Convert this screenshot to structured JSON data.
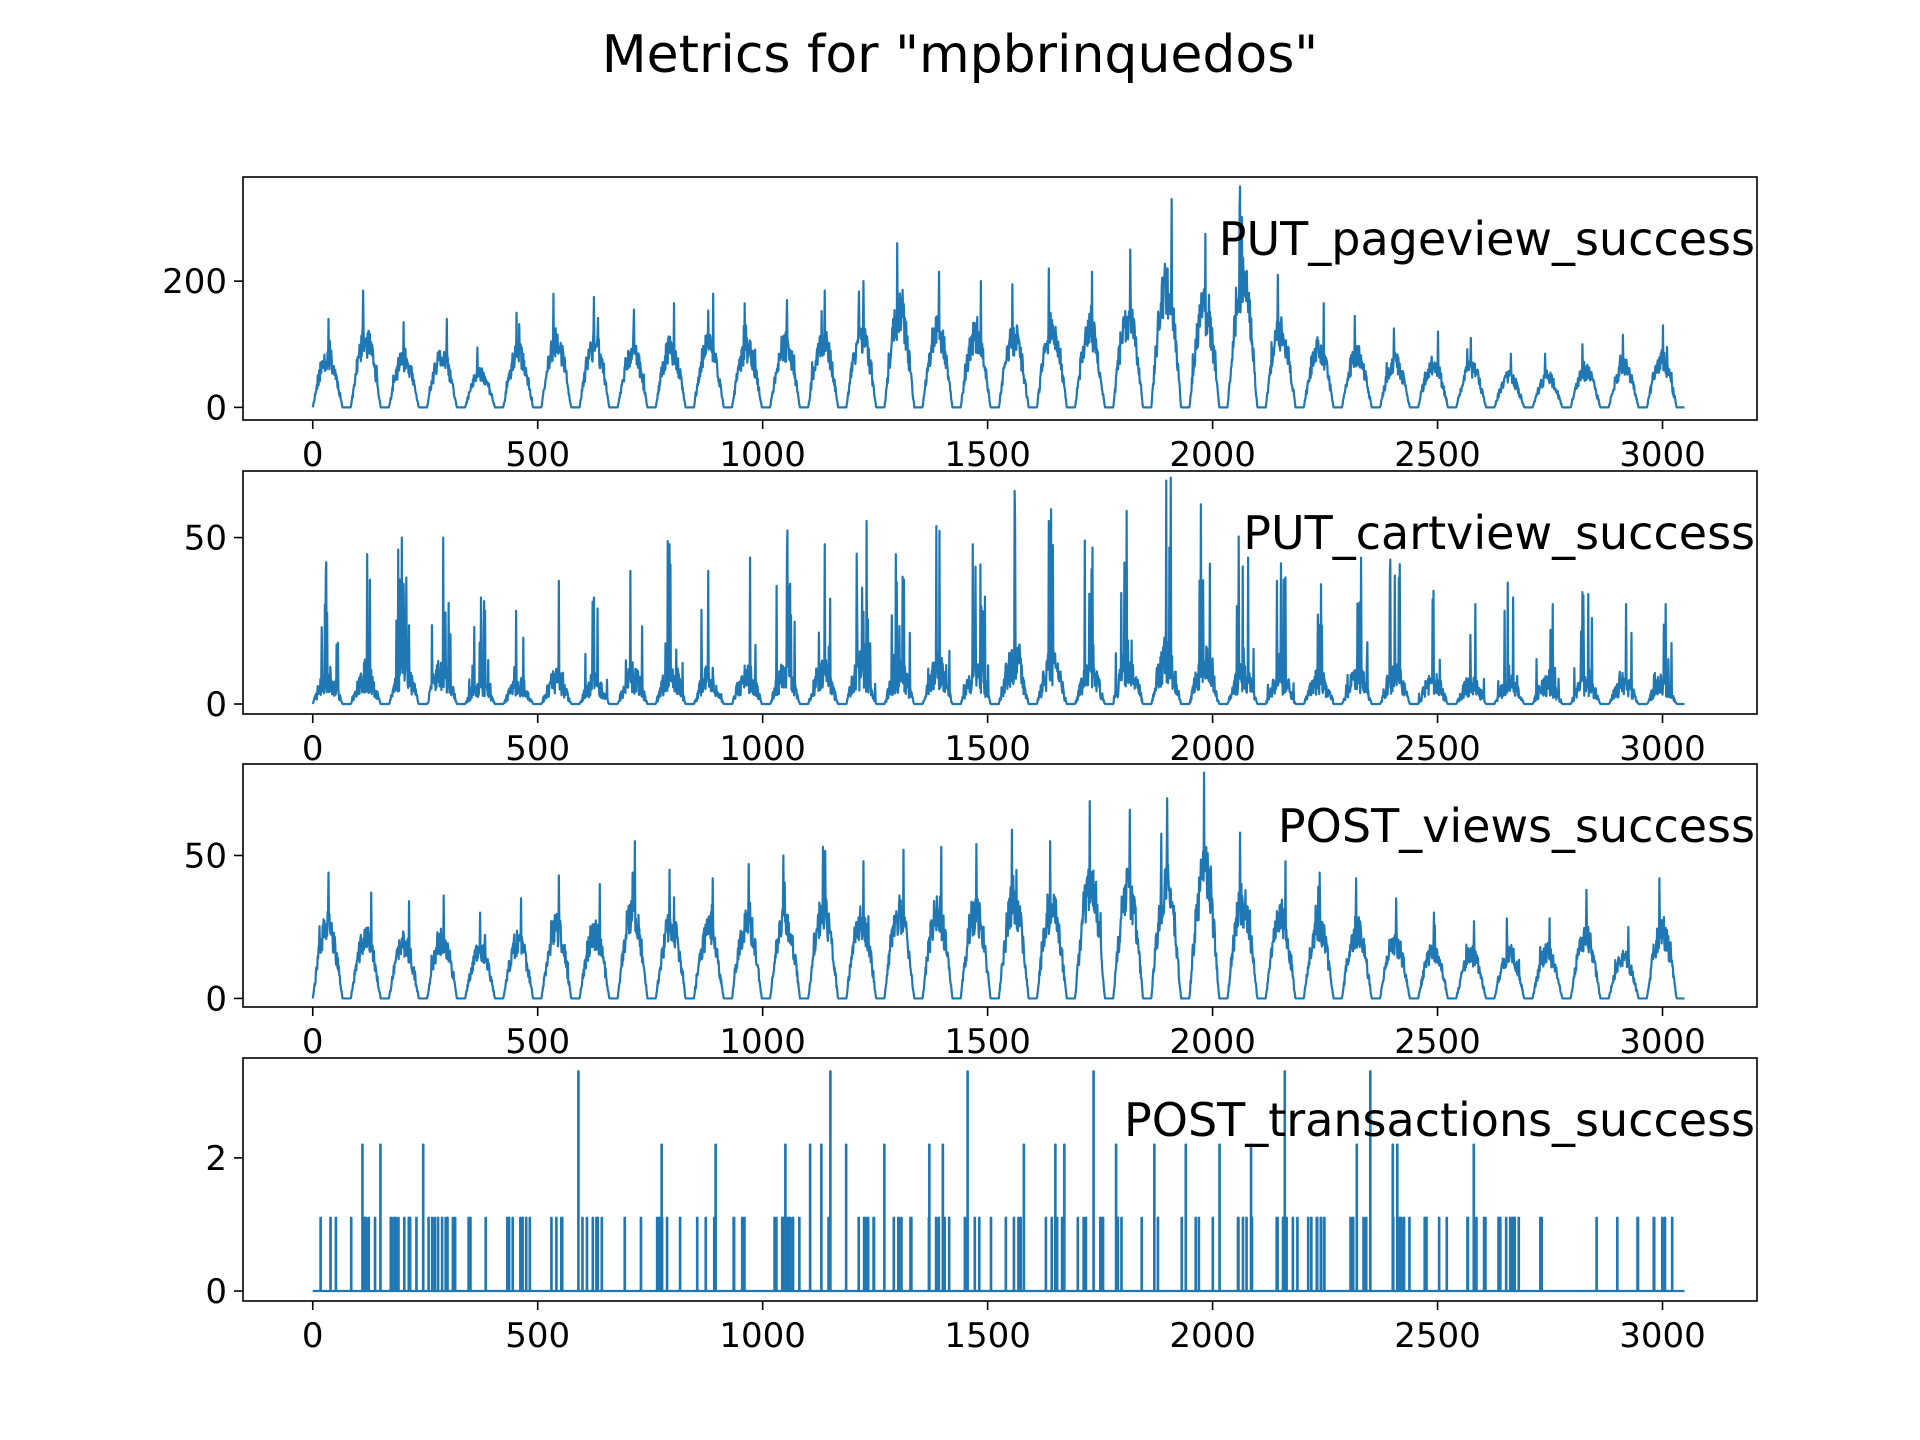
{
  "title": "Metrics for \"mpbrinquedos\"",
  "colors": {
    "line": "#1f77b4",
    "axis": "#000000",
    "background": "#ffffff"
  },
  "chart_data": [
    {
      "type": "line",
      "label": "PUT_pageview_success",
      "label_position": "top-right",
      "xlim": [
        -155,
        3210
      ],
      "ylim": [
        -20,
        365
      ],
      "xticks": [
        0,
        500,
        1000,
        1500,
        2000,
        2500,
        3000
      ],
      "xtick_labels": [
        "0",
        "500",
        "1000",
        "1500",
        "2000",
        "2500",
        "3000"
      ],
      "yticks": [
        0,
        200
      ],
      "ytick_labels": [
        "0",
        "200"
      ],
      "n_points": 3050,
      "daily_peaks": [
        140,
        185,
        135,
        140,
        95,
        150,
        180,
        175,
        155,
        165,
        180,
        165,
        170,
        185,
        200,
        260,
        215,
        200,
        195,
        220,
        215,
        250,
        330,
        275,
        350,
        210,
        165,
        145,
        125,
        120,
        110,
        85,
        85,
        100,
        115,
        130
      ],
      "max": 350
    },
    {
      "type": "line",
      "label": "PUT_cartview_success",
      "label_position": "top-right",
      "xlim": [
        -155,
        3210
      ],
      "ylim": [
        -3,
        70
      ],
      "xticks": [
        0,
        500,
        1000,
        1500,
        2000,
        2500,
        3000
      ],
      "xtick_labels": [
        "0",
        "500",
        "1000",
        "1500",
        "2000",
        "2500",
        "3000"
      ],
      "yticks": [
        0,
        50
      ],
      "ytick_labels": [
        "0",
        "50"
      ],
      "n_points": 3050,
      "daily_peaks": [
        39,
        45,
        50,
        50,
        28,
        28,
        37,
        32,
        40,
        48,
        40,
        44,
        45,
        48,
        55,
        45,
        52,
        48,
        64,
        55,
        47,
        58,
        68,
        60,
        44,
        38,
        36,
        44,
        42,
        34,
        30,
        32,
        30,
        33,
        30,
        30
      ],
      "max": 68
    },
    {
      "type": "line",
      "label": "POST_views_success",
      "label_position": "top-right",
      "xlim": [
        -155,
        3210
      ],
      "ylim": [
        -3,
        82
      ],
      "xticks": [
        0,
        500,
        1000,
        1500,
        2000,
        2500,
        3000
      ],
      "xtick_labels": [
        "0",
        "500",
        "1000",
        "1500",
        "2000",
        "2500",
        "3000"
      ],
      "yticks": [
        0,
        50
      ],
      "ytick_labels": [
        "0",
        "50"
      ],
      "n_points": 3050,
      "daily_peaks": [
        44,
        37,
        34,
        36,
        30,
        35,
        43,
        40,
        55,
        45,
        42,
        47,
        50,
        53,
        48,
        52,
        53,
        54,
        59,
        55,
        69,
        66,
        70,
        79,
        58,
        48,
        44,
        42,
        35,
        30,
        27,
        28,
        28,
        38,
        25,
        42
      ],
      "max": 79
    },
    {
      "type": "line",
      "label": "POST_transactions_success",
      "label_position": "top-right",
      "xlim": [
        -155,
        3210
      ],
      "ylim": [
        -0.15,
        3.5
      ],
      "xticks": [
        0,
        500,
        1000,
        1500,
        2000,
        2500,
        3000
      ],
      "xtick_labels": [
        "0",
        "500",
        "1000",
        "1500",
        "2000",
        "2500",
        "3000"
      ],
      "yticks": [
        0,
        2
      ],
      "ytick_labels": [
        "0",
        "2"
      ],
      "n_points": 3050,
      "spike_levels": [
        0,
        1.1,
        2.2,
        3.3
      ],
      "spikes_3_3_at": [
        590,
        1150,
        1455,
        1735,
        2160,
        2350
      ],
      "spikes_2_2_at": [
        110,
        150,
        245,
        775,
        895,
        1050,
        1105,
        1130,
        1185,
        1270,
        1370,
        1400,
        1580,
        1650,
        1670,
        1785,
        1870,
        1940,
        2015,
        2085,
        2320,
        2400,
        2410,
        2580
      ],
      "max": 3.3
    }
  ]
}
